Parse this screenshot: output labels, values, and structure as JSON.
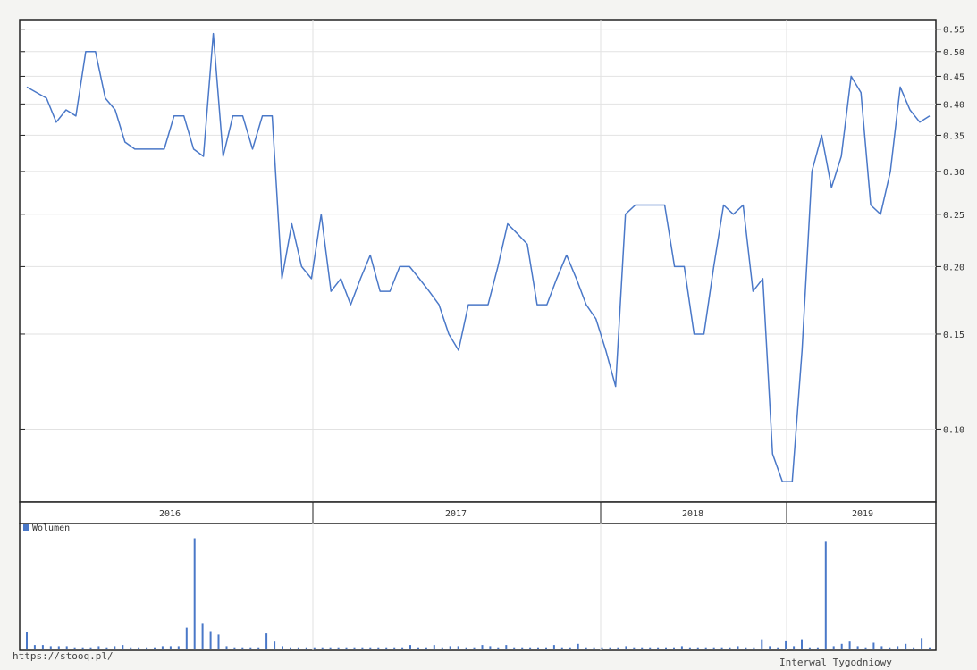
{
  "chart_data": [
    {
      "type": "line",
      "title": "",
      "xlabel": "",
      "ylabel": "",
      "scale": "log",
      "ylim": [
        0.075,
        0.56
      ],
      "y_ticks": [
        0.1,
        0.15,
        0.2,
        0.25,
        0.3,
        0.35,
        0.4,
        0.45,
        0.5,
        0.55
      ],
      "y_tick_labels": [
        "0.10",
        "0.15",
        "0.20",
        "0.25",
        "0.30",
        "0.35",
        "0.40",
        "0.45",
        "0.50",
        "0.55"
      ],
      "x_year_labels": [
        "2016",
        "2017",
        "2018",
        "2019"
      ],
      "grid": true,
      "line_color": "#4a78c8",
      "series": [
        {
          "values": [
            0.43,
            0.42,
            0.41,
            0.37,
            0.39,
            0.38,
            0.5,
            0.5,
            0.41,
            0.39,
            0.34,
            0.33,
            0.33,
            0.33,
            0.33,
            0.38,
            0.38,
            0.33,
            0.32,
            0.54,
            0.32,
            0.38,
            0.38,
            0.33,
            0.38,
            0.38,
            0.19,
            0.24,
            0.2,
            0.19,
            0.25,
            0.18,
            0.19,
            0.17,
            0.19,
            0.21,
            0.18,
            0.18,
            0.2,
            0.2,
            0.19,
            0.18,
            0.17,
            0.15,
            0.14,
            0.17,
            0.17,
            0.17,
            0.2,
            0.24,
            0.23,
            0.22,
            0.17,
            0.17,
            0.19,
            0.21,
            0.19,
            0.17,
            0.16,
            0.14,
            0.12,
            0.25,
            0.26,
            0.26,
            0.26,
            0.26,
            0.2,
            0.2,
            0.15,
            0.15,
            0.2,
            0.26,
            0.25,
            0.26,
            0.18,
            0.19,
            0.09,
            0.08,
            0.08,
            0.14,
            0.3,
            0.35,
            0.28,
            0.32,
            0.45,
            0.42,
            0.26,
            0.25,
            0.3,
            0.43,
            0.39,
            0.37,
            0.38
          ]
        }
      ]
    },
    {
      "type": "bar",
      "title": "",
      "legend": [
        "Wolumen"
      ],
      "bar_color": "#4a78c8",
      "values": [
        0.14,
        0.03,
        0.03,
        0.02,
        0.02,
        0.02,
        0.01,
        0.01,
        0.01,
        0.02,
        0.01,
        0.02,
        0.03,
        0.01,
        0.01,
        0.01,
        0.01,
        0.02,
        0.02,
        0.02,
        0.18,
        0.95,
        0.22,
        0.15,
        0.12,
        0.02,
        0.01,
        0.01,
        0.01,
        0.01,
        0.13,
        0.06,
        0.02,
        0.01,
        0.01,
        0.01,
        0.01,
        0.01,
        0.01,
        0.01,
        0.01,
        0.01,
        0.01,
        0.01,
        0.01,
        0.01,
        0.01,
        0.01,
        0.03,
        0.01,
        0.01,
        0.03,
        0.01,
        0.02,
        0.02,
        0.01,
        0.01,
        0.03,
        0.02,
        0.01,
        0.03,
        0.01,
        0.01,
        0.01,
        0.01,
        0.01,
        0.03,
        0.01,
        0.01,
        0.04,
        0.01,
        0.01,
        0.01,
        0.01,
        0.01,
        0.02,
        0.01,
        0.01,
        0.01,
        0.01,
        0.01,
        0.01,
        0.02,
        0.01,
        0.01,
        0.01,
        0.01,
        0.01,
        0.01,
        0.02,
        0.01,
        0.01,
        0.08,
        0.02,
        0.01,
        0.07,
        0.02,
        0.08,
        0.01,
        0.01,
        0.92,
        0.02,
        0.04,
        0.06,
        0.02,
        0.01,
        0.05,
        0.02,
        0.01,
        0.02,
        0.04,
        0.01,
        0.09,
        0.01
      ]
    }
  ],
  "footer": {
    "source": "https://stooq.pl/",
    "interval": "Interwal Tygodniowy"
  }
}
